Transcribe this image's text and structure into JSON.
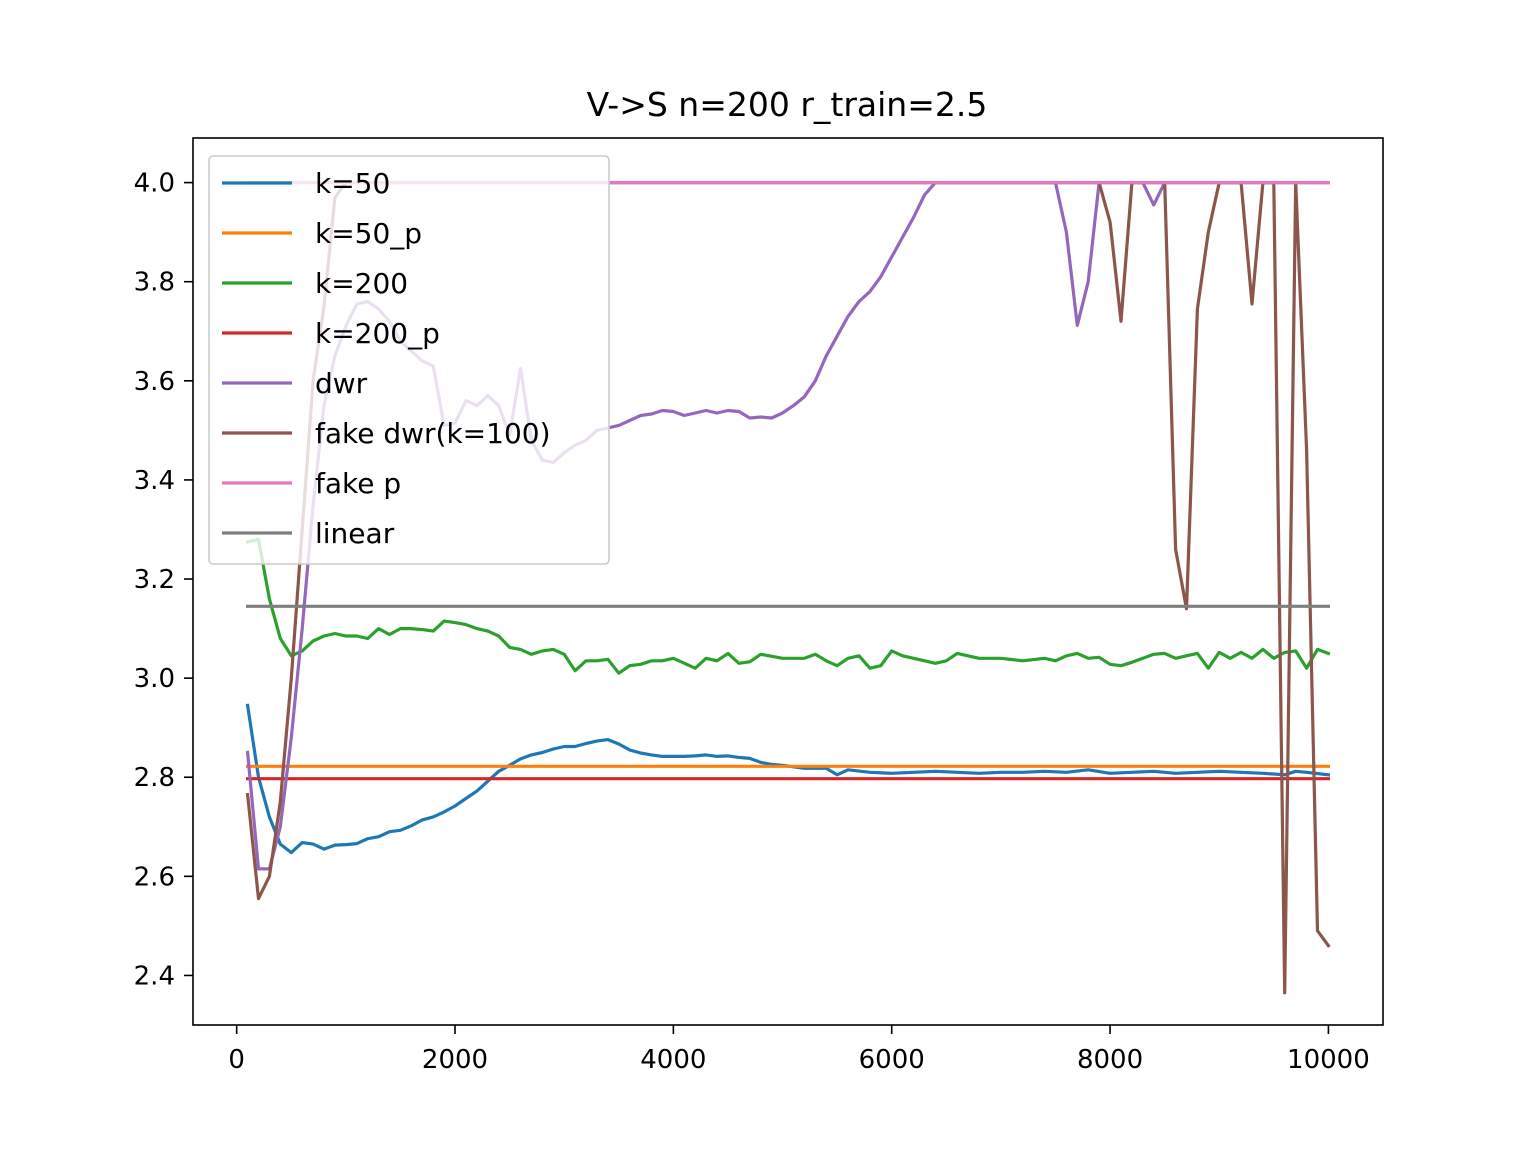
{
  "chart_data": {
    "type": "line",
    "title": "V->S n=200 r_train=2.5",
    "xlabel": "",
    "ylabel": "",
    "xlim": [
      -400,
      10500
    ],
    "ylim": [
      2.3,
      4.09
    ],
    "xticks": [
      0,
      2000,
      4000,
      6000,
      8000,
      10000
    ],
    "xtick_labels": [
      "0",
      "2000",
      "4000",
      "6000",
      "8000",
      "10000"
    ],
    "yticks": [
      2.4,
      2.6,
      2.8,
      3.0,
      3.2,
      3.4,
      3.6,
      3.8,
      4.0
    ],
    "ytick_labels": [
      "2.4",
      "2.6",
      "2.8",
      "3.0",
      "3.2",
      "3.4",
      "3.6",
      "3.8",
      "4.0"
    ],
    "grid": false,
    "legend_position": "upper-left",
    "series": [
      {
        "name": "k=50",
        "color": "#1f77b4",
        "x": [
          100,
          200,
          300,
          400,
          500,
          600,
          700,
          800,
          900,
          1000,
          1100,
          1200,
          1300,
          1400,
          1500,
          1600,
          1700,
          1800,
          1900,
          2000,
          2100,
          2200,
          2300,
          2400,
          2500,
          2600,
          2700,
          2800,
          2900,
          3000,
          3100,
          3200,
          3300,
          3400,
          3500,
          3600,
          3700,
          3800,
          3900,
          4000,
          4100,
          4200,
          4300,
          4400,
          4500,
          4600,
          4700,
          4800,
          4900,
          5000,
          5200,
          5400,
          5500,
          5600,
          5800,
          6000,
          6200,
          6400,
          6600,
          6800,
          7000,
          7200,
          7400,
          7600,
          7800,
          8000,
          8200,
          8400,
          8600,
          8800,
          9000,
          9200,
          9400,
          9600,
          9700,
          9800,
          10000
        ],
        "values": [
          2.945,
          2.8,
          2.72,
          2.665,
          2.648,
          2.668,
          2.665,
          2.655,
          2.663,
          2.664,
          2.666,
          2.676,
          2.68,
          2.69,
          2.693,
          2.702,
          2.714,
          2.72,
          2.73,
          2.742,
          2.757,
          2.772,
          2.792,
          2.812,
          2.824,
          2.837,
          2.845,
          2.85,
          2.857,
          2.862,
          2.862,
          2.868,
          2.873,
          2.876,
          2.867,
          2.855,
          2.849,
          2.845,
          2.842,
          2.842,
          2.842,
          2.843,
          2.845,
          2.842,
          2.843,
          2.84,
          2.838,
          2.83,
          2.826,
          2.824,
          2.818,
          2.818,
          2.805,
          2.815,
          2.81,
          2.808,
          2.81,
          2.812,
          2.81,
          2.808,
          2.81,
          2.81,
          2.812,
          2.81,
          2.815,
          2.808,
          2.81,
          2.812,
          2.808,
          2.81,
          2.812,
          2.81,
          2.808,
          2.805,
          2.812,
          2.81,
          2.805
        ]
      },
      {
        "name": "k=50_p",
        "color": "#ff7f0e",
        "x": [
          100,
          10000
        ],
        "values": [
          2.822,
          2.822
        ]
      },
      {
        "name": "k=200",
        "color": "#2ca02c",
        "x": [
          100,
          200,
          300,
          400,
          500,
          600,
          700,
          800,
          900,
          1000,
          1100,
          1200,
          1300,
          1400,
          1500,
          1600,
          1700,
          1800,
          1900,
          2000,
          2100,
          2200,
          2300,
          2400,
          2500,
          2600,
          2700,
          2800,
          2900,
          3000,
          3100,
          3200,
          3300,
          3400,
          3500,
          3600,
          3700,
          3800,
          3900,
          4000,
          4200,
          4300,
          4400,
          4500,
          4600,
          4700,
          4800,
          5000,
          5200,
          5300,
          5400,
          5500,
          5600,
          5700,
          5800,
          5900,
          6000,
          6100,
          6200,
          6300,
          6400,
          6500,
          6600,
          6800,
          7000,
          7200,
          7400,
          7500,
          7600,
          7700,
          7800,
          7900,
          8000,
          8100,
          8200,
          8300,
          8400,
          8500,
          8600,
          8700,
          8800,
          8900,
          9000,
          9100,
          9200,
          9300,
          9400,
          9500,
          9600,
          9700,
          9800,
          9900,
          10000
        ],
        "values": [
          3.275,
          3.28,
          3.16,
          3.08,
          3.045,
          3.055,
          3.075,
          3.085,
          3.09,
          3.085,
          3.085,
          3.08,
          3.1,
          3.088,
          3.1,
          3.1,
          3.098,
          3.095,
          3.115,
          3.112,
          3.108,
          3.1,
          3.095,
          3.085,
          3.062,
          3.058,
          3.048,
          3.055,
          3.058,
          3.048,
          3.015,
          3.035,
          3.035,
          3.038,
          3.01,
          3.025,
          3.028,
          3.035,
          3.035,
          3.04,
          3.02,
          3.04,
          3.035,
          3.05,
          3.03,
          3.033,
          3.048,
          3.04,
          3.04,
          3.048,
          3.035,
          3.025,
          3.04,
          3.045,
          3.02,
          3.025,
          3.055,
          3.045,
          3.04,
          3.035,
          3.03,
          3.035,
          3.05,
          3.04,
          3.04,
          3.035,
          3.04,
          3.035,
          3.045,
          3.05,
          3.04,
          3.042,
          3.028,
          3.025,
          3.032,
          3.04,
          3.048,
          3.05,
          3.04,
          3.045,
          3.05,
          3.02,
          3.052,
          3.04,
          3.052,
          3.04,
          3.058,
          3.04,
          3.052,
          3.055,
          3.02,
          3.058,
          3.05
        ]
      },
      {
        "name": "k=200_p",
        "color": "#d62728",
        "x": [
          100,
          10000
        ],
        "values": [
          2.797,
          2.797
        ]
      },
      {
        "name": "dwr",
        "color": "#9467bd",
        "x": [
          100,
          200,
          300,
          400,
          500,
          600,
          700,
          800,
          900,
          1000,
          1100,
          1200,
          1300,
          1400,
          1500,
          1600,
          1700,
          1800,
          1900,
          2000,
          2100,
          2200,
          2300,
          2400,
          2500,
          2600,
          2700,
          2800,
          2900,
          3000,
          3100,
          3200,
          3300,
          3400,
          3500,
          3600,
          3700,
          3800,
          3900,
          4000,
          4100,
          4200,
          4300,
          4400,
          4500,
          4600,
          4700,
          4800,
          4900,
          5000,
          5100,
          5200,
          5300,
          5400,
          5500,
          5600,
          5700,
          5800,
          5900,
          6000,
          6100,
          6200,
          6300,
          6400,
          6500,
          6700,
          7000,
          7300,
          7500,
          7600,
          7700,
          7800,
          7900,
          8000,
          8100,
          8200,
          8300,
          8400,
          8500,
          8700,
          9000,
          10000
        ],
        "values": [
          2.85,
          2.615,
          2.615,
          2.7,
          2.88,
          3.1,
          3.35,
          3.55,
          3.65,
          3.71,
          3.755,
          3.76,
          3.745,
          3.72,
          3.68,
          3.66,
          3.64,
          3.63,
          3.51,
          3.515,
          3.56,
          3.55,
          3.57,
          3.55,
          3.49,
          3.625,
          3.48,
          3.44,
          3.435,
          3.455,
          3.47,
          3.48,
          3.5,
          3.505,
          3.51,
          3.52,
          3.53,
          3.533,
          3.54,
          3.538,
          3.53,
          3.535,
          3.54,
          3.535,
          3.54,
          3.538,
          3.525,
          3.527,
          3.525,
          3.535,
          3.55,
          3.568,
          3.6,
          3.65,
          3.69,
          3.73,
          3.76,
          3.78,
          3.81,
          3.85,
          3.89,
          3.93,
          3.975,
          4.0,
          4.0,
          4.0,
          4.0,
          4.0,
          4.0,
          3.9,
          3.712,
          3.8,
          4.0,
          4.0,
          4.0,
          4.0,
          4.0,
          3.955,
          4.0,
          4.0,
          4.0,
          4.0
        ]
      },
      {
        "name": "fake dwr(k=100)",
        "color": "#8c564b",
        "x": [
          100,
          200,
          300,
          400,
          500,
          600,
          700,
          800,
          900,
          1000,
          1100,
          7800,
          7900,
          8000,
          8100,
          8200,
          8500,
          8600,
          8700,
          8800,
          8900,
          9000,
          9200,
          9300,
          9400,
          9500,
          9600,
          9700,
          9800,
          9900,
          10000
        ],
        "values": [
          2.765,
          2.555,
          2.6,
          2.75,
          3.0,
          3.3,
          3.6,
          3.75,
          3.97,
          4.0,
          4.0,
          4.0,
          4.0,
          3.92,
          3.72,
          4.0,
          4.0,
          3.26,
          3.14,
          3.745,
          3.9,
          4.0,
          4.0,
          3.755,
          4.0,
          4.0,
          2.365,
          4.0,
          3.46,
          2.49,
          2.46
        ]
      },
      {
        "name": "fake p",
        "color": "#e377c2",
        "x": [
          100,
          10000
        ],
        "values": [
          4.0,
          4.0
        ]
      },
      {
        "name": "linear",
        "color": "#7f7f7f",
        "x": [
          100,
          10000
        ],
        "values": [
          3.145,
          3.145
        ]
      }
    ]
  }
}
